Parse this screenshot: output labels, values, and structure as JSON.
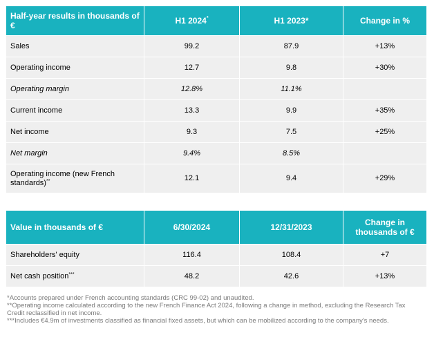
{
  "results_table": {
    "header": {
      "label": "Half-year results in thousands of €",
      "col1": "H1 2024",
      "col1_sup": "*",
      "col2": "H1 2023*",
      "col3": "Change in %"
    },
    "rows": [
      {
        "label": "Sales",
        "label_sup": "",
        "h1_2024": "99.2",
        "h1_2023": "87.9",
        "change": "+13%",
        "italic": false
      },
      {
        "label": "Operating income",
        "label_sup": "",
        "h1_2024": "12.7",
        "h1_2023": "9.8",
        "change": "+30%",
        "italic": false
      },
      {
        "label": "Operating margin",
        "label_sup": "",
        "h1_2024": "12.8%",
        "h1_2023": "11.1%",
        "change": "",
        "italic": true
      },
      {
        "label": "Current income",
        "label_sup": "",
        "h1_2024": "13.3",
        "h1_2023": "9.9",
        "change": "+35%",
        "italic": false
      },
      {
        "label": "Net income",
        "label_sup": "",
        "h1_2024": "9.3",
        "h1_2023": "7.5",
        "change": "+25%",
        "italic": false
      },
      {
        "label": "Net margin",
        "label_sup": "",
        "h1_2024": "9.4%",
        "h1_2023": "8.5%",
        "change": "",
        "italic": true
      },
      {
        "label": "Operating income (new French standards)",
        "label_sup": "**",
        "h1_2024": "12.1",
        "h1_2023": "9.4",
        "change": "+29%",
        "italic": false
      }
    ]
  },
  "balance_table": {
    "header": {
      "label": "Value in thousands of €",
      "col1": "6/30/2024",
      "col2": "12/31/2023",
      "col3": "Change in thousands of €"
    },
    "rows": [
      {
        "label": "Shareholders' equity",
        "label_sup": "",
        "v1": "116.4",
        "v2": "108.4",
        "change": "+7"
      },
      {
        "label": "Net cash position",
        "label_sup": "***",
        "v1": "48.2",
        "v2": "42.6",
        "change": "+13%"
      }
    ]
  },
  "footnotes": [
    "*Accounts prepared under French accounting standards (CRC 99-02) and unaudited.",
    "**Operating income calculated according to the new French Finance Act 2024, following a change in method, excluding the Research Tax Credit reclassified in net income.",
    "***Includes €4.9m of investments classified as financial fixed assets, but which can be mobilized according to the company's needs."
  ]
}
